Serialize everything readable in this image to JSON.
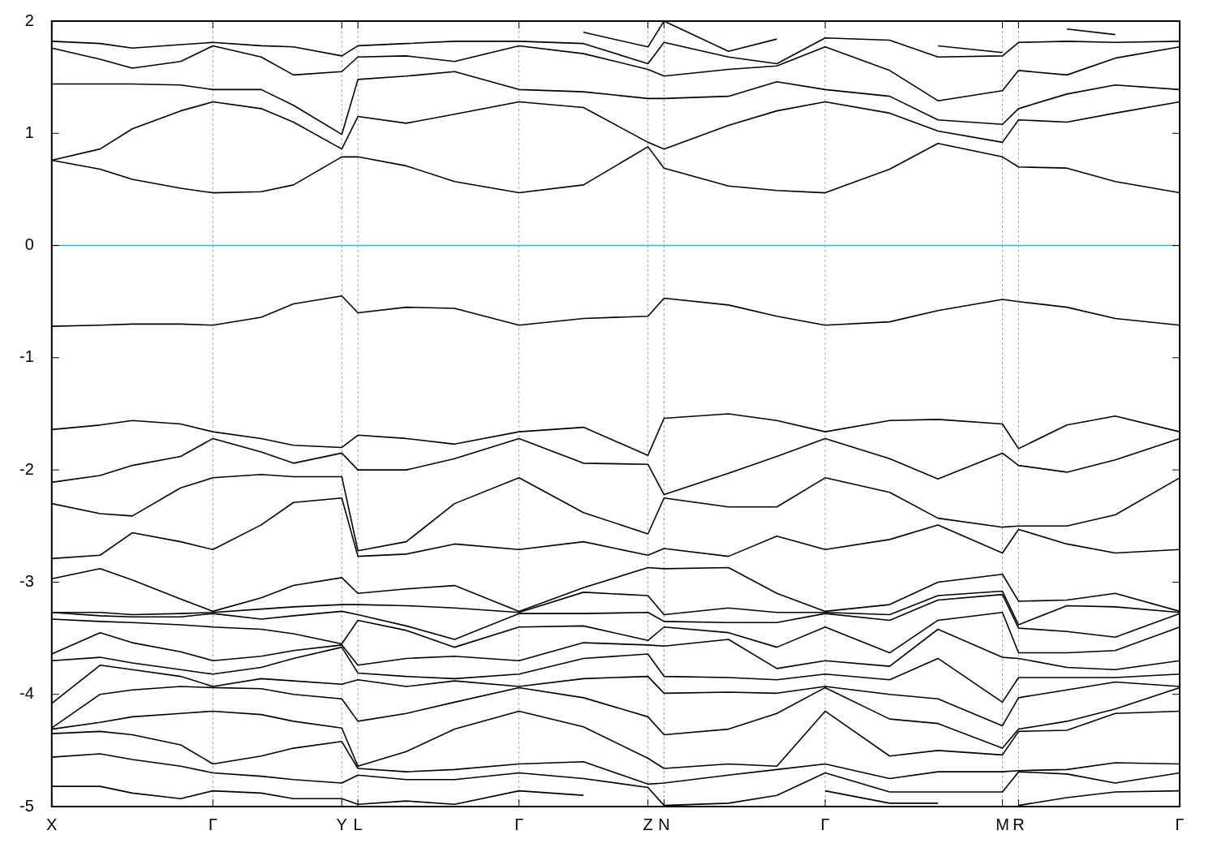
{
  "chart_data": {
    "type": "line",
    "categories": [
      "X",
      null,
      null,
      null,
      null,
      null,
      null,
      null,
      null,
      null,
      "Γ",
      null,
      null,
      null,
      null,
      null,
      null,
      null,
      "Y",
      "L",
      null,
      null,
      null,
      null,
      null,
      null,
      null,
      null,
      null,
      "Γ",
      null,
      null,
      null,
      null,
      null,
      null,
      null,
      "Z",
      "N",
      null,
      null,
      null,
      null,
      null,
      null,
      null,
      null,
      null,
      "Γ",
      null,
      null,
      null,
      null,
      null,
      null,
      null,
      null,
      null,
      null,
      "M",
      "R",
      null,
      null,
      null,
      null,
      null,
      null,
      null,
      null,
      null,
      "Γ"
    ],
    "ylim": [
      -5,
      2
    ],
    "yticks": [
      -5,
      -4,
      -3,
      -2,
      -1,
      0,
      1,
      2
    ],
    "grid": "x",
    "line_style": "solid",
    "ref_lines": [
      {
        "axis": "y",
        "value": 0,
        "color": "#4aa8e0"
      }
    ],
    "series": [
      {
        "color": "#000000",
        "values": [
          null,
          null,
          null,
          null,
          null,
          null,
          null,
          null,
          null,
          null,
          null,
          null,
          null,
          null,
          null,
          null,
          null,
          null,
          null,
          null,
          null,
          null,
          null,
          null,
          null,
          null,
          null,
          null,
          null,
          null,
          null,
          null,
          null,
          1.9,
          null,
          null,
          null,
          1.77,
          2.0,
          null,
          null,
          null,
          1.73,
          null,
          null,
          1.84,
          null,
          null,
          null,
          null,
          null,
          null,
          null,
          null,
          null,
          null,
          null,
          null,
          null,
          null,
          null,
          null,
          null,
          null,
          null,
          null,
          null,
          null,
          null,
          null,
          null
        ]
      },
      {
        "color": "#000000",
        "values": [
          null,
          null,
          null,
          null,
          null,
          null,
          null,
          null,
          null,
          null,
          null,
          null,
          null,
          null,
          null,
          null,
          null,
          null,
          null,
          null,
          null,
          null,
          null,
          null,
          null,
          null,
          null,
          null,
          null,
          null,
          null,
          null,
          null,
          null,
          null,
          null,
          null,
          null,
          null,
          null,
          null,
          null,
          null,
          null,
          null,
          null,
          null,
          null,
          null,
          null,
          null,
          null,
          null,
          null,
          null,
          1.78,
          null,
          null,
          null,
          1.72,
          null,
          null,
          null,
          null,
          null,
          null,
          null,
          null,
          null,
          null,
          null
        ]
      },
      {
        "color": "#000000",
        "values": [
          null,
          null,
          null,
          null,
          null,
          null,
          null,
          null,
          null,
          null,
          null,
          null,
          null,
          null,
          null,
          null,
          null,
          null,
          null,
          null,
          null,
          null,
          null,
          null,
          null,
          null,
          null,
          null,
          null,
          null,
          null,
          null,
          null,
          null,
          null,
          null,
          null,
          null,
          null,
          null,
          null,
          null,
          null,
          null,
          null,
          null,
          null,
          null,
          null,
          null,
          null,
          null,
          null,
          null,
          null,
          null,
          null,
          null,
          null,
          null,
          null,
          null,
          null,
          1.93,
          null,
          null,
          1.88,
          null,
          null,
          null,
          null
        ]
      },
      {
        "color": "#000000",
        "values": [
          1.82,
          null,
          null,
          1.8,
          null,
          1.76,
          null,
          null,
          1.79,
          null,
          1.81,
          null,
          null,
          1.78,
          null,
          1.77,
          null,
          null,
          1.69,
          1.78,
          null,
          null,
          1.8,
          null,
          null,
          1.82,
          null,
          null,
          null,
          1.82,
          null,
          null,
          null,
          1.8,
          null,
          null,
          null,
          1.62,
          1.81,
          null,
          null,
          null,
          1.68,
          null,
          null,
          1.62,
          null,
          null,
          1.85,
          null,
          null,
          null,
          1.83,
          null,
          null,
          1.68,
          null,
          null,
          null,
          1.69,
          1.81,
          null,
          null,
          1.82,
          null,
          null,
          1.81,
          null,
          null,
          null,
          1.82
        ]
      },
      {
        "color": "#000000",
        "values": [
          1.76,
          null,
          null,
          1.66,
          null,
          1.58,
          null,
          null,
          1.64,
          null,
          1.78,
          null,
          null,
          1.68,
          null,
          1.52,
          null,
          null,
          1.55,
          1.68,
          null,
          null,
          1.69,
          null,
          null,
          1.64,
          null,
          null,
          null,
          1.78,
          null,
          null,
          null,
          1.71,
          null,
          null,
          null,
          1.57,
          1.51,
          null,
          null,
          null,
          1.57,
          null,
          null,
          1.6,
          null,
          null,
          1.77,
          null,
          null,
          null,
          1.56,
          null,
          null,
          1.29,
          null,
          null,
          null,
          1.38,
          1.56,
          null,
          null,
          1.52,
          null,
          null,
          1.67,
          null,
          null,
          null,
          1.77
        ]
      },
      {
        "color": "#000000",
        "values": [
          1.44,
          null,
          null,
          1.44,
          null,
          1.44,
          null,
          null,
          1.43,
          null,
          1.39,
          null,
          null,
          1.39,
          null,
          1.25,
          null,
          null,
          0.99,
          1.48,
          null,
          null,
          1.51,
          null,
          null,
          1.55,
          null,
          null,
          null,
          1.39,
          null,
          null,
          null,
          1.37,
          null,
          null,
          null,
          1.31,
          1.31,
          null,
          null,
          null,
          1.33,
          null,
          null,
          1.46,
          null,
          null,
          1.39,
          null,
          null,
          null,
          1.33,
          null,
          null,
          1.12,
          null,
          null,
          null,
          1.08,
          1.22,
          null,
          null,
          1.35,
          null,
          null,
          1.43,
          null,
          null,
          null,
          1.39
        ]
      },
      {
        "color": "#000000",
        "values": [
          0.76,
          null,
          null,
          0.86,
          null,
          1.04,
          null,
          null,
          1.2,
          null,
          1.28,
          null,
          null,
          1.22,
          null,
          1.1,
          null,
          null,
          0.86,
          1.15,
          null,
          null,
          1.09,
          null,
          null,
          1.17,
          null,
          null,
          null,
          1.28,
          null,
          null,
          null,
          1.23,
          null,
          null,
          null,
          0.92,
          0.86,
          null,
          null,
          null,
          1.07,
          null,
          null,
          1.2,
          null,
          null,
          1.28,
          null,
          null,
          null,
          1.18,
          null,
          null,
          1.02,
          null,
          null,
          null,
          0.92,
          1.12,
          null,
          null,
          1.1,
          null,
          null,
          1.18,
          null,
          null,
          null,
          1.28
        ]
      },
      {
        "color": "#000000",
        "values": [
          0.76,
          null,
          null,
          0.68,
          null,
          0.59,
          null,
          null,
          0.51,
          null,
          0.47,
          null,
          null,
          0.48,
          null,
          0.54,
          null,
          null,
          0.79,
          0.79,
          null,
          null,
          0.71,
          null,
          null,
          0.57,
          null,
          null,
          null,
          0.47,
          null,
          null,
          null,
          0.54,
          null,
          null,
          null,
          0.88,
          0.69,
          null,
          null,
          null,
          0.53,
          null,
          null,
          0.49,
          null,
          null,
          0.47,
          null,
          null,
          null,
          0.68,
          null,
          null,
          0.91,
          null,
          null,
          null,
          0.79,
          0.7,
          null,
          null,
          0.69,
          null,
          null,
          0.57,
          null,
          null,
          null,
          0.47
        ]
      },
      {
        "color": "#000000",
        "values": [
          -0.72,
          null,
          null,
          -0.71,
          null,
          -0.7,
          null,
          null,
          -0.7,
          null,
          -0.71,
          null,
          null,
          -0.64,
          null,
          -0.52,
          null,
          null,
          -0.45,
          -0.6,
          null,
          null,
          -0.55,
          null,
          null,
          -0.56,
          null,
          null,
          null,
          -0.71,
          null,
          null,
          null,
          -0.65,
          null,
          null,
          null,
          -0.63,
          -0.47,
          null,
          null,
          null,
          -0.53,
          null,
          null,
          -0.63,
          null,
          null,
          -0.71,
          null,
          null,
          null,
          -0.68,
          null,
          null,
          -0.58,
          null,
          null,
          null,
          -0.48,
          -0.5,
          null,
          null,
          -0.55,
          null,
          null,
          -0.65,
          null,
          null,
          null,
          -0.71
        ]
      },
      {
        "color": "#000000",
        "values": [
          -1.64,
          null,
          null,
          -1.6,
          null,
          -1.56,
          null,
          null,
          -1.59,
          null,
          -1.66,
          null,
          null,
          -1.72,
          null,
          -1.78,
          null,
          null,
          -1.8,
          -1.69,
          null,
          null,
          -1.72,
          null,
          null,
          -1.77,
          null,
          null,
          null,
          -1.66,
          null,
          null,
          null,
          -1.62,
          null,
          null,
          null,
          -1.87,
          -1.54,
          null,
          null,
          null,
          -1.5,
          null,
          null,
          -1.56,
          null,
          null,
          -1.66,
          null,
          null,
          null,
          -1.56,
          null,
          null,
          -1.55,
          null,
          null,
          null,
          -1.59,
          -1.81,
          null,
          null,
          -1.6,
          null,
          null,
          -1.52,
          null,
          null,
          null,
          -1.66
        ]
      },
      {
        "color": "#000000",
        "values": [
          -2.11,
          null,
          null,
          -2.05,
          null,
          -1.96,
          null,
          null,
          -1.88,
          null,
          -1.72,
          null,
          null,
          -1.84,
          null,
          -1.94,
          null,
          null,
          -1.85,
          -2.0,
          null,
          null,
          -2.0,
          null,
          null,
          -1.9,
          null,
          null,
          null,
          -1.72,
          null,
          null,
          null,
          -1.94,
          null,
          null,
          null,
          -1.95,
          -2.22,
          null,
          null,
          null,
          -2.03,
          null,
          null,
          -1.88,
          null,
          null,
          -1.72,
          null,
          null,
          null,
          -1.9,
          null,
          null,
          -2.08,
          null,
          null,
          null,
          -1.85,
          -1.96,
          null,
          null,
          -2.02,
          null,
          null,
          -1.91,
          null,
          null,
          null,
          -1.72
        ]
      },
      {
        "color": "#000000",
        "values": [
          -2.3,
          null,
          null,
          -2.39,
          null,
          -2.41,
          null,
          null,
          -2.16,
          null,
          -2.07,
          null,
          null,
          -2.04,
          null,
          -2.06,
          null,
          null,
          -2.06,
          -2.72,
          null,
          null,
          -2.64,
          null,
          null,
          -2.3,
          null,
          null,
          null,
          -2.07,
          null,
          null,
          null,
          -2.38,
          null,
          null,
          null,
          -2.57,
          -2.25,
          null,
          null,
          null,
          -2.33,
          null,
          null,
          -2.33,
          null,
          null,
          -2.07,
          null,
          null,
          null,
          -2.2,
          null,
          null,
          -2.43,
          null,
          null,
          null,
          -2.51,
          -2.5,
          null,
          null,
          -2.5,
          null,
          null,
          -2.4,
          null,
          null,
          null,
          -2.07
        ]
      },
      {
        "color": "#000000",
        "values": [
          -2.79,
          null,
          null,
          -2.76,
          null,
          -2.56,
          null,
          null,
          -2.64,
          null,
          -2.71,
          null,
          null,
          -2.49,
          null,
          -2.29,
          null,
          null,
          -2.25,
          -2.77,
          null,
          null,
          -2.75,
          null,
          null,
          -2.66,
          null,
          null,
          null,
          -2.71,
          null,
          null,
          null,
          -2.64,
          null,
          null,
          null,
          -2.76,
          -2.7,
          null,
          null,
          null,
          -2.77,
          null,
          null,
          -2.59,
          null,
          null,
          -2.71,
          null,
          null,
          null,
          -2.62,
          null,
          null,
          -2.49,
          null,
          null,
          null,
          -2.74,
          -2.53,
          null,
          null,
          -2.66,
          null,
          null,
          -2.74,
          null,
          null,
          null,
          -2.71
        ]
      },
      {
        "color": "#000000",
        "values": [
          -2.97,
          null,
          null,
          -2.88,
          null,
          -2.98,
          null,
          null,
          -3.15,
          null,
          -3.26,
          null,
          null,
          -3.14,
          null,
          -3.03,
          null,
          null,
          -2.96,
          -3.1,
          null,
          null,
          -3.06,
          null,
          null,
          -3.03,
          null,
          null,
          null,
          -3.26,
          null,
          null,
          null,
          -3.05,
          null,
          null,
          null,
          -2.87,
          -2.88,
          null,
          null,
          null,
          -2.87,
          null,
          null,
          -3.1,
          null,
          null,
          -3.26,
          null,
          null,
          null,
          -3.2,
          null,
          null,
          -3.0,
          null,
          null,
          null,
          -2.93,
          -3.17,
          null,
          null,
          -3.16,
          null,
          null,
          -3.1,
          null,
          null,
          null,
          -3.26
        ]
      },
      {
        "color": "#000000",
        "values": [
          -3.27,
          null,
          null,
          -3.27,
          null,
          -3.29,
          null,
          null,
          -3.28,
          null,
          -3.27,
          null,
          null,
          -3.24,
          null,
          -3.22,
          null,
          null,
          -3.2,
          -3.2,
          null,
          null,
          -3.21,
          null,
          null,
          -3.23,
          null,
          null,
          null,
          -3.27,
          null,
          null,
          null,
          -3.09,
          null,
          null,
          null,
          -3.12,
          -3.29,
          null,
          null,
          null,
          -3.23,
          null,
          null,
          -3.27,
          null,
          null,
          -3.27,
          null,
          null,
          null,
          -3.29,
          null,
          null,
          -3.12,
          null,
          null,
          null,
          -3.08,
          -3.38,
          null,
          null,
          -3.21,
          null,
          null,
          -3.22,
          null,
          null,
          null,
          -3.27
        ]
      },
      {
        "color": "#000000",
        "values": [
          -3.27,
          null,
          null,
          -3.3,
          null,
          -3.31,
          null,
          null,
          -3.31,
          null,
          -3.28,
          null,
          null,
          -3.33,
          null,
          -3.3,
          null,
          null,
          -3.26,
          -3.29,
          null,
          null,
          -3.39,
          null,
          null,
          -3.51,
          null,
          null,
          null,
          -3.28,
          null,
          null,
          null,
          -3.28,
          null,
          null,
          null,
          -3.27,
          -3.35,
          null,
          null,
          null,
          -3.36,
          null,
          null,
          -3.36,
          null,
          null,
          -3.28,
          null,
          null,
          null,
          -3.34,
          null,
          null,
          -3.16,
          null,
          null,
          null,
          -3.11,
          -3.41,
          null,
          null,
          -3.44,
          null,
          null,
          -3.49,
          null,
          null,
          null,
          -3.28
        ]
      },
      {
        "color": "#000000",
        "values": [
          -3.33,
          null,
          null,
          -3.35,
          null,
          -3.36,
          null,
          null,
          -3.38,
          null,
          -3.4,
          null,
          null,
          -3.42,
          null,
          -3.46,
          null,
          null,
          -3.55,
          -3.34,
          null,
          null,
          -3.43,
          null,
          null,
          -3.58,
          null,
          null,
          null,
          -3.4,
          null,
          null,
          null,
          -3.39,
          null,
          null,
          null,
          -3.52,
          -3.4,
          null,
          null,
          null,
          -3.45,
          null,
          null,
          -3.58,
          null,
          null,
          -3.4,
          null,
          null,
          null,
          -3.63,
          null,
          null,
          -3.34,
          null,
          null,
          null,
          -3.27,
          -3.63,
          null,
          null,
          -3.63,
          null,
          null,
          -3.61,
          null,
          null,
          null,
          -3.4
        ]
      },
      {
        "color": "#000000",
        "values": [
          -3.64,
          null,
          null,
          -3.45,
          null,
          -3.54,
          null,
          null,
          -3.62,
          null,
          -3.7,
          null,
          null,
          -3.66,
          null,
          -3.61,
          null,
          null,
          -3.56,
          -3.74,
          null,
          null,
          -3.68,
          null,
          null,
          -3.66,
          null,
          null,
          null,
          -3.7,
          null,
          null,
          null,
          -3.54,
          null,
          null,
          null,
          -3.56,
          -3.57,
          null,
          null,
          null,
          -3.51,
          null,
          null,
          -3.77,
          null,
          null,
          -3.7,
          null,
          null,
          null,
          -3.75,
          null,
          null,
          -3.42,
          null,
          null,
          null,
          -3.67,
          -3.68,
          null,
          null,
          -3.76,
          null,
          null,
          -3.78,
          null,
          null,
          null,
          -3.7
        ]
      },
      {
        "color": "#000000",
        "values": [
          -3.7,
          null,
          null,
          -3.67,
          null,
          -3.72,
          null,
          null,
          -3.78,
          null,
          -3.82,
          null,
          null,
          -3.76,
          null,
          -3.68,
          null,
          null,
          -3.58,
          -3.81,
          null,
          null,
          -3.84,
          null,
          null,
          -3.86,
          null,
          null,
          null,
          -3.82,
          null,
          null,
          null,
          -3.68,
          null,
          null,
          null,
          -3.64,
          -3.84,
          null,
          null,
          null,
          -3.85,
          null,
          null,
          -3.87,
          null,
          null,
          -3.82,
          null,
          null,
          null,
          -3.87,
          null,
          null,
          -3.68,
          null,
          null,
          null,
          -4.07,
          -3.85,
          null,
          null,
          -3.85,
          null,
          null,
          -3.85,
          null,
          null,
          null,
          -3.82
        ]
      },
      {
        "color": "#000000",
        "values": [
          -4.08,
          null,
          null,
          -3.74,
          null,
          -3.78,
          null,
          null,
          -3.84,
          null,
          -3.93,
          null,
          null,
          -3.86,
          null,
          -3.88,
          null,
          null,
          -3.91,
          -3.87,
          null,
          null,
          -3.93,
          null,
          null,
          -3.88,
          null,
          null,
          null,
          -3.93,
          null,
          null,
          null,
          -3.86,
          null,
          null,
          null,
          -3.84,
          -3.99,
          null,
          null,
          null,
          -3.98,
          null,
          null,
          -3.99,
          null,
          null,
          -3.93,
          null,
          null,
          null,
          -4.0,
          null,
          null,
          -4.04,
          null,
          null,
          null,
          -4.28,
          -4.03,
          null,
          null,
          -3.96,
          null,
          null,
          -3.89,
          null,
          null,
          null,
          -3.93
        ]
      },
      {
        "color": "#000000",
        "values": [
          -4.3,
          null,
          null,
          -4.0,
          null,
          -3.96,
          null,
          null,
          -3.93,
          null,
          -3.94,
          null,
          null,
          -3.95,
          null,
          -4.0,
          null,
          null,
          -4.04,
          -4.24,
          null,
          null,
          -4.17,
          null,
          null,
          -4.07,
          null,
          null,
          null,
          -3.94,
          null,
          null,
          null,
          -4.03,
          null,
          null,
          null,
          -4.2,
          -4.36,
          null,
          null,
          null,
          -4.31,
          null,
          null,
          -4.17,
          null,
          null,
          -3.94,
          null,
          null,
          null,
          -4.22,
          null,
          null,
          -4.26,
          null,
          null,
          null,
          -4.48,
          -4.31,
          null,
          null,
          -4.24,
          null,
          null,
          -4.13,
          null,
          null,
          null,
          -3.94
        ]
      },
      {
        "color": "#000000",
        "values": [
          -4.31,
          null,
          null,
          -4.25,
          null,
          -4.2,
          null,
          null,
          -4.17,
          null,
          -4.15,
          null,
          null,
          -4.18,
          null,
          -4.24,
          null,
          null,
          -4.3,
          -4.64,
          null,
          null,
          -4.51,
          null,
          null,
          -4.31,
          null,
          null,
          null,
          -4.15,
          null,
          null,
          null,
          -4.29,
          null,
          null,
          null,
          -4.57,
          -4.66,
          null,
          null,
          null,
          -4.62,
          null,
          null,
          -4.64,
          null,
          null,
          -4.15,
          null,
          null,
          null,
          -4.55,
          null,
          null,
          -4.5,
          null,
          null,
          null,
          -4.54,
          -4.33,
          null,
          null,
          -4.32,
          null,
          null,
          -4.17,
          null,
          null,
          null,
          -4.15
        ]
      },
      {
        "color": "#000000",
        "values": [
          -4.35,
          null,
          null,
          -4.33,
          null,
          -4.36,
          null,
          null,
          -4.45,
          null,
          -4.62,
          null,
          null,
          -4.55,
          null,
          -4.48,
          null,
          null,
          -4.42,
          -4.66,
          null,
          null,
          -4.69,
          null,
          null,
          -4.67,
          null,
          null,
          null,
          -4.62,
          null,
          null,
          null,
          -4.6,
          null,
          null,
          null,
          -4.8,
          -4.79,
          null,
          null,
          null,
          -4.72,
          null,
          null,
          -4.67,
          null,
          null,
          -4.62,
          null,
          null,
          null,
          -4.75,
          null,
          null,
          -4.69,
          null,
          null,
          null,
          -4.69,
          -4.68,
          null,
          null,
          -4.67,
          null,
          null,
          -4.61,
          null,
          null,
          null,
          -4.62
        ]
      },
      {
        "color": "#000000",
        "values": [
          -4.56,
          null,
          null,
          -4.53,
          null,
          -4.58,
          null,
          null,
          -4.64,
          null,
          -4.7,
          null,
          null,
          -4.73,
          null,
          -4.76,
          null,
          null,
          -4.79,
          -4.72,
          null,
          null,
          -4.76,
          null,
          null,
          -4.76,
          null,
          null,
          null,
          -4.7,
          null,
          null,
          null,
          -4.75,
          null,
          null,
          null,
          -4.83,
          -4.99,
          null,
          null,
          null,
          -4.97,
          null,
          null,
          -4.9,
          null,
          null,
          -4.7,
          null,
          null,
          null,
          -4.87,
          null,
          null,
          -4.87,
          null,
          null,
          null,
          -4.87,
          -4.69,
          null,
          null,
          -4.71,
          null,
          null,
          -4.79,
          null,
          null,
          null,
          -4.7
        ]
      },
      {
        "color": "#000000",
        "values": [
          -4.82,
          null,
          null,
          -4.82,
          null,
          -4.88,
          null,
          null,
          -4.93,
          null,
          -4.86,
          null,
          null,
          -4.88,
          null,
          -4.93,
          null,
          null,
          -4.93,
          -4.98,
          null,
          null,
          -4.95,
          null,
          null,
          -4.98,
          null,
          null,
          null,
          -4.86,
          null,
          null,
          null,
          -4.9,
          null,
          null,
          null,
          null,
          null,
          null,
          null,
          null,
          null,
          null,
          null,
          null,
          null,
          null,
          null,
          null,
          null,
          null,
          null,
          null,
          null,
          null,
          null,
          null,
          null,
          null,
          null,
          null,
          null,
          null,
          null,
          null,
          null,
          null,
          null,
          null,
          null
        ]
      },
      {
        "color": "#000000",
        "values": [
          null,
          null,
          null,
          null,
          null,
          null,
          null,
          null,
          null,
          null,
          null,
          null,
          null,
          null,
          null,
          null,
          null,
          null,
          null,
          null,
          null,
          null,
          null,
          null,
          null,
          null,
          null,
          null,
          null,
          null,
          null,
          null,
          null,
          null,
          null,
          null,
          null,
          null,
          null,
          null,
          null,
          null,
          null,
          null,
          null,
          null,
          null,
          null,
          -4.86,
          null,
          null,
          null,
          -4.97,
          null,
          null,
          -4.97,
          null,
          null,
          null,
          null,
          null,
          null,
          null,
          null,
          null,
          null,
          null,
          null,
          null,
          null,
          null
        ]
      },
      {
        "color": "#000000",
        "values": [
          null,
          null,
          null,
          null,
          null,
          null,
          null,
          null,
          null,
          null,
          null,
          null,
          null,
          null,
          null,
          null,
          null,
          null,
          null,
          null,
          null,
          null,
          null,
          null,
          null,
          null,
          null,
          null,
          null,
          null,
          null,
          null,
          null,
          null,
          null,
          null,
          null,
          null,
          null,
          null,
          null,
          null,
          null,
          null,
          null,
          null,
          null,
          null,
          null,
          null,
          null,
          null,
          null,
          null,
          null,
          null,
          null,
          null,
          null,
          null,
          -4.99,
          null,
          null,
          -4.92,
          null,
          null,
          -4.87,
          null,
          null,
          null,
          -4.86
        ]
      }
    ]
  }
}
